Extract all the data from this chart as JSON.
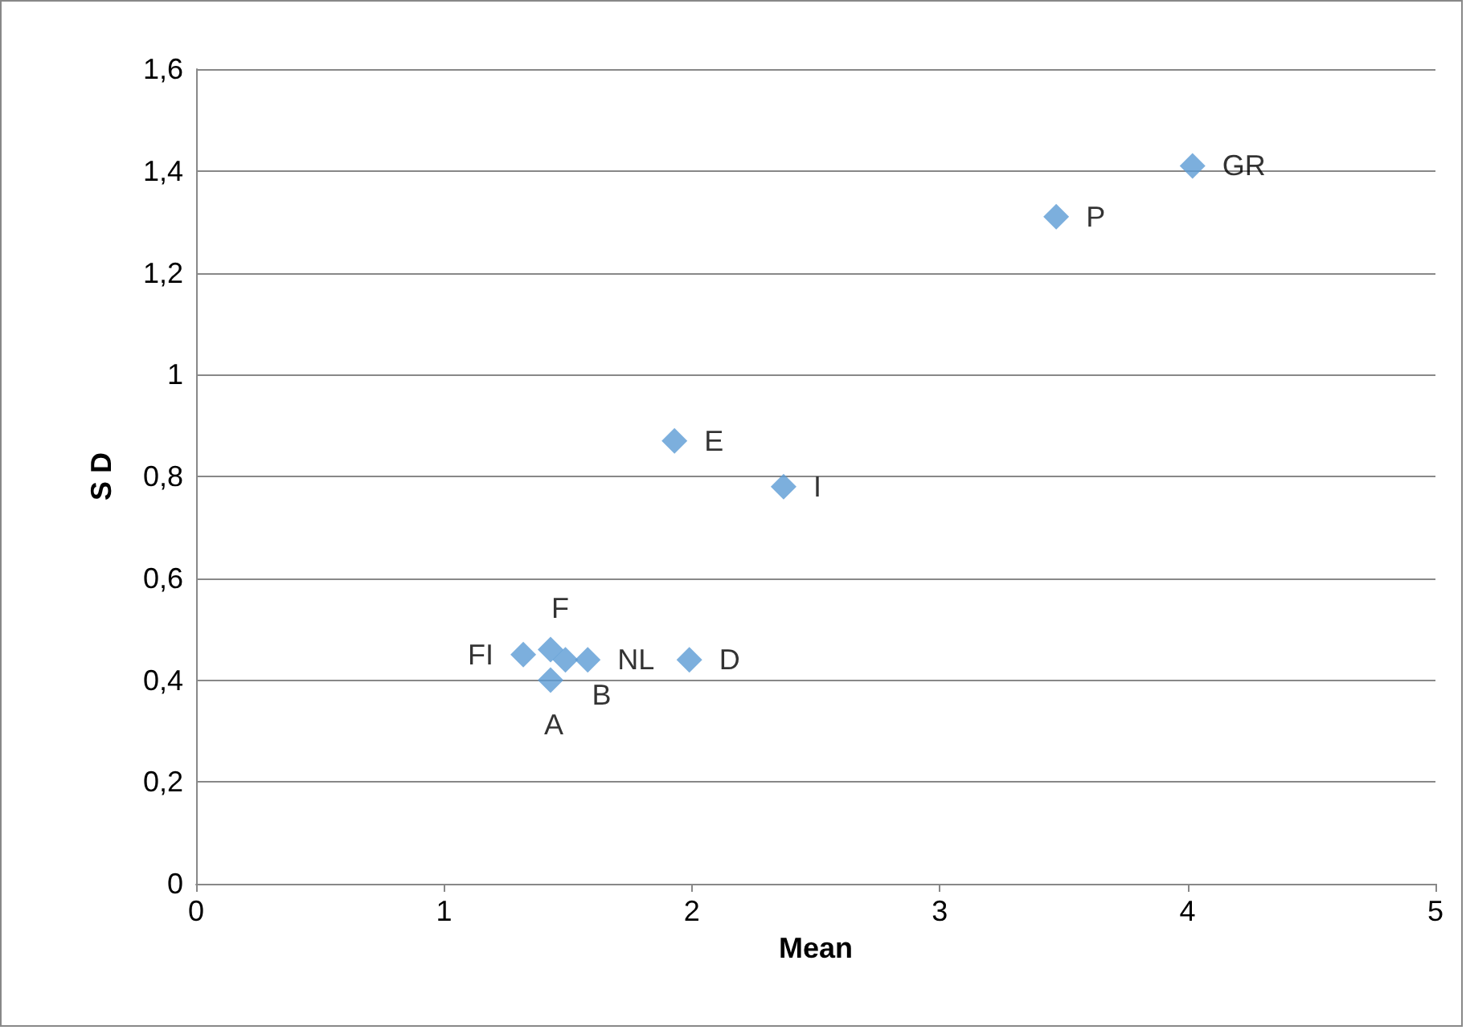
{
  "chart_data": {
    "type": "scatter",
    "xlabel": "Mean",
    "ylabel": "S D",
    "x": [
      4.02,
      3.47,
      1.93,
      2.37,
      1.99,
      1.58,
      1.49,
      1.43,
      1.43,
      1.32
    ],
    "series": [
      {
        "color": "#5b9bd5",
        "values": [
          1.41,
          1.31,
          0.87,
          0.78,
          0.44,
          0.44,
          0.44,
          0.4,
          0.46,
          0.45
        ]
      }
    ],
    "annotations": [
      {
        "text": "GR",
        "x": 4.02,
        "y": 1.41
      },
      {
        "text": "P",
        "x": 3.47,
        "y": 1.31
      },
      {
        "text": "E",
        "x": 1.93,
        "y": 0.87
      },
      {
        "text": "I",
        "x": 2.37,
        "y": 0.78
      },
      {
        "text": "D",
        "x": 1.99,
        "y": 0.44
      },
      {
        "text": "NL",
        "x": 1.58,
        "y": 0.44
      },
      {
        "text": "B",
        "x": 1.49,
        "y": 0.44
      },
      {
        "text": "A",
        "x": 1.43,
        "y": 0.4
      },
      {
        "text": "F",
        "x": 1.43,
        "y": 0.46
      },
      {
        "text": "FI",
        "x": 1.32,
        "y": 0.45
      }
    ],
    "xlim": [
      0,
      5
    ],
    "xticks": [
      0,
      1,
      2,
      3,
      4,
      5
    ],
    "ylim": [
      0,
      1.6
    ],
    "yticks": [
      0,
      {
        "value": 0.2,
        "label": "0,2"
      },
      {
        "value": 0.4,
        "label": "0,4"
      },
      {
        "value": 0.6,
        "label": "0,6"
      },
      {
        "value": 0.8,
        "label": "0,8"
      },
      1,
      {
        "value": 1.2,
        "label": "1,2"
      },
      {
        "value": 1.4,
        "label": "1,4"
      },
      {
        "value": 1.6,
        "label": "1,6"
      }
    ],
    "grid": "y",
    "marker": "diamond"
  }
}
